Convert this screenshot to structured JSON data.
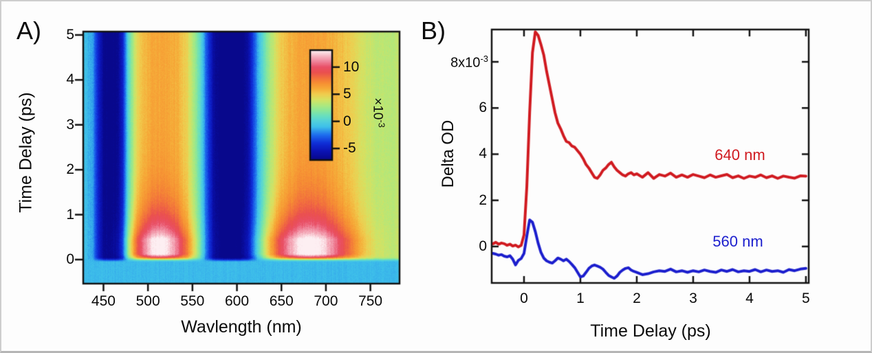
{
  "figure": {
    "panel_a_label": "A)",
    "panel_b_label": "B)"
  },
  "chart_data": [
    {
      "type": "heatmap",
      "panel": "A",
      "xlabel": "Wavlength (nm)",
      "ylabel": "Time Delay (ps)",
      "x_range": [
        428,
        782
      ],
      "y_range": [
        -0.52,
        5.06
      ],
      "x_ticks": [
        450,
        500,
        550,
        600,
        650,
        700,
        750
      ],
      "y_ticks": [
        0,
        1,
        2,
        3,
        4,
        5
      ],
      "value_units": "Delta OD x10^-3",
      "colorbar": {
        "range": [
          -7,
          13
        ],
        "ticks": [
          10,
          5,
          0,
          -5
        ],
        "multiplier_base": "×10",
        "multiplier_exp": "-3"
      },
      "colormap": [
        [
          -7,
          "#08088c"
        ],
        [
          -5.5,
          "#0b13b4"
        ],
        [
          -4,
          "#0f2fd8"
        ],
        [
          -2.5,
          "#1e6eee"
        ],
        [
          -1,
          "#3ec0ea"
        ],
        [
          0,
          "#52d0dc"
        ],
        [
          1,
          "#68dfbe"
        ],
        [
          2,
          "#8ae79a"
        ],
        [
          3,
          "#b0e87c"
        ],
        [
          4,
          "#d6e262"
        ],
        [
          5,
          "#f0cc4e"
        ],
        [
          6,
          "#f6ab38"
        ],
        [
          7,
          "#f69033"
        ],
        [
          8,
          "#f2703d"
        ],
        [
          9,
          "#ea4f4f"
        ],
        [
          10,
          "#e94f66"
        ],
        [
          11,
          "#ef8298"
        ],
        [
          12,
          "#f6b6c2"
        ],
        [
          13,
          "#fdeff2"
        ]
      ],
      "pre_zero_value": -1.1,
      "zero_blend_halfwidth": 0.06,
      "base_spectrum": [
        [
          428,
          -0.8
        ],
        [
          438,
          -1.6
        ],
        [
          444,
          -4.5
        ],
        [
          450,
          -6.9
        ],
        [
          458,
          -7.3
        ],
        [
          466,
          -6.9
        ],
        [
          472,
          -4.5
        ],
        [
          478,
          0.5
        ],
        [
          486,
          4.0
        ],
        [
          494,
          5.5
        ],
        [
          505,
          6.1
        ],
        [
          520,
          6.2
        ],
        [
          534,
          5.8
        ],
        [
          544,
          4.6
        ],
        [
          552,
          2.8
        ],
        [
          559,
          0.5
        ],
        [
          566,
          -3.0
        ],
        [
          574,
          -6.3
        ],
        [
          582,
          -7.4
        ],
        [
          592,
          -7.8
        ],
        [
          604,
          -7.6
        ],
        [
          612,
          -6.2
        ],
        [
          618,
          -3.8
        ],
        [
          624,
          -1.2
        ],
        [
          631,
          1.2
        ],
        [
          639,
          3.2
        ],
        [
          648,
          4.8
        ],
        [
          658,
          5.7
        ],
        [
          670,
          6.2
        ],
        [
          682,
          6.4
        ],
        [
          696,
          6.2
        ],
        [
          710,
          5.8
        ],
        [
          722,
          5.2
        ],
        [
          732,
          4.6
        ],
        [
          742,
          3.9
        ],
        [
          752,
          3.5
        ],
        [
          764,
          3.3
        ],
        [
          774,
          3.3
        ],
        [
          782,
          3.5
        ]
      ],
      "transient_features": [
        {
          "center": 513,
          "sigma": 23,
          "amplitude": 7.2
        },
        {
          "center": 682,
          "sigma": 34,
          "amplitude": 7.2
        }
      ],
      "kinetics": {
        "rise_start": -0.02,
        "rise_end": 0.12,
        "decay_start": 0.45,
        "decay_tau": 0.6
      },
      "noise": {
        "seed": 11,
        "pixel": 0.3,
        "column": 0.22,
        "pre_zero_factor": 0.5
      }
    },
    {
      "type": "line",
      "panel": "B",
      "xlabel": "Time Delay (ps)",
      "ylabel": "Delta OD",
      "x_range": [
        -0.573,
        5.05
      ],
      "y_range": [
        -1.58,
        9.4
      ],
      "x_ticks": [
        0,
        1,
        2,
        3,
        4,
        5
      ],
      "y_ticks": [
        8,
        6,
        4,
        2,
        0
      ],
      "y_multiplier": {
        "base": "8x10",
        "exp": "-3",
        "applies_to_tick": 8
      },
      "value_units": "x10^-3",
      "series": [
        {
          "name": "640 nm",
          "color": "#d01a20",
          "points": [
            [
              -0.55,
              0.12
            ],
            [
              -0.5,
              0.18
            ],
            [
              -0.45,
              0.1
            ],
            [
              -0.4,
              0.15
            ],
            [
              -0.35,
              0.12
            ],
            [
              -0.3,
              0.05
            ],
            [
              -0.25,
              0.1
            ],
            [
              -0.2,
              0.02
            ],
            [
              -0.15,
              0.06
            ],
            [
              -0.1,
              -0.02
            ],
            [
              -0.05,
              0.05
            ],
            [
              0,
              0.5
            ],
            [
              0.05,
              2.6
            ],
            [
              0.1,
              5.8
            ],
            [
              0.15,
              8.4
            ],
            [
              0.2,
              9.3
            ],
            [
              0.25,
              9.15
            ],
            [
              0.3,
              8.75
            ],
            [
              0.35,
              8.3
            ],
            [
              0.4,
              7.6
            ],
            [
              0.45,
              7.0
            ],
            [
              0.5,
              6.4
            ],
            [
              0.55,
              5.8
            ],
            [
              0.6,
              5.35
            ],
            [
              0.65,
              5.1
            ],
            [
              0.7,
              4.8
            ],
            [
              0.75,
              4.55
            ],
            [
              0.8,
              4.5
            ],
            [
              0.85,
              4.35
            ],
            [
              0.9,
              4.3
            ],
            [
              0.95,
              4.15
            ],
            [
              1,
              4.0
            ],
            [
              1.05,
              3.8
            ],
            [
              1.1,
              3.55
            ],
            [
              1.15,
              3.4
            ],
            [
              1.2,
              3.2
            ],
            [
              1.25,
              3.0
            ],
            [
              1.3,
              2.95
            ],
            [
              1.35,
              3.1
            ],
            [
              1.4,
              3.3
            ],
            [
              1.45,
              3.4
            ],
            [
              1.5,
              3.55
            ],
            [
              1.55,
              3.65
            ],
            [
              1.6,
              3.45
            ],
            [
              1.65,
              3.3
            ],
            [
              1.7,
              3.2
            ],
            [
              1.75,
              3.1
            ],
            [
              1.8,
              3.05
            ],
            [
              1.85,
              3.15
            ],
            [
              1.9,
              3.2
            ],
            [
              1.95,
              3.1
            ],
            [
              2,
              3.15
            ],
            [
              2.1,
              3.0
            ],
            [
              2.2,
              3.2
            ],
            [
              2.3,
              2.95
            ],
            [
              2.4,
              3.12
            ],
            [
              2.5,
              3.05
            ],
            [
              2.6,
              3.18
            ],
            [
              2.7,
              3.0
            ],
            [
              2.8,
              3.1
            ],
            [
              2.9,
              3.0
            ],
            [
              3,
              3.12
            ],
            [
              3.1,
              3.05
            ],
            [
              3.2,
              2.98
            ],
            [
              3.3,
              3.1
            ],
            [
              3.4,
              3.0
            ],
            [
              3.5,
              3.06
            ],
            [
              3.6,
              3.12
            ],
            [
              3.7,
              2.98
            ],
            [
              3.8,
              3.06
            ],
            [
              3.9,
              2.95
            ],
            [
              4,
              3.05
            ],
            [
              4.1,
              3.0
            ],
            [
              4.2,
              3.1
            ],
            [
              4.3,
              2.98
            ],
            [
              4.4,
              3.06
            ],
            [
              4.5,
              2.95
            ],
            [
              4.6,
              3.05
            ],
            [
              4.7,
              3.0
            ],
            [
              4.8,
              2.96
            ],
            [
              4.9,
              3.06
            ],
            [
              5,
              3.05
            ]
          ]
        },
        {
          "name": "560 nm",
          "color": "#1b1ecd",
          "points": [
            [
              -0.55,
              -0.3
            ],
            [
              -0.5,
              -0.33
            ],
            [
              -0.45,
              -0.38
            ],
            [
              -0.4,
              -0.35
            ],
            [
              -0.35,
              -0.42
            ],
            [
              -0.3,
              -0.45
            ],
            [
              -0.25,
              -0.4
            ],
            [
              -0.2,
              -0.55
            ],
            [
              -0.15,
              -0.8
            ],
            [
              -0.1,
              -0.6
            ],
            [
              -0.05,
              -0.52
            ],
            [
              0,
              -0.3
            ],
            [
              0.05,
              0.45
            ],
            [
              0.1,
              1.15
            ],
            [
              0.15,
              1.05
            ],
            [
              0.2,
              0.65
            ],
            [
              0.25,
              0.15
            ],
            [
              0.3,
              -0.25
            ],
            [
              0.35,
              -0.5
            ],
            [
              0.4,
              -0.62
            ],
            [
              0.45,
              -0.68
            ],
            [
              0.5,
              -0.72
            ],
            [
              0.55,
              -0.62
            ],
            [
              0.6,
              -0.5
            ],
            [
              0.65,
              -0.55
            ],
            [
              0.7,
              -0.62
            ],
            [
              0.75,
              -0.55
            ],
            [
              0.8,
              -0.65
            ],
            [
              0.85,
              -0.78
            ],
            [
              0.9,
              -0.92
            ],
            [
              0.95,
              -1.12
            ],
            [
              1,
              -1.32
            ],
            [
              1.05,
              -1.28
            ],
            [
              1.1,
              -1.12
            ],
            [
              1.15,
              -0.95
            ],
            [
              1.2,
              -0.85
            ],
            [
              1.25,
              -0.8
            ],
            [
              1.3,
              -0.85
            ],
            [
              1.35,
              -0.9
            ],
            [
              1.4,
              -0.98
            ],
            [
              1.45,
              -1.12
            ],
            [
              1.5,
              -1.25
            ],
            [
              1.55,
              -1.32
            ],
            [
              1.6,
              -1.38
            ],
            [
              1.65,
              -1.28
            ],
            [
              1.7,
              -1.12
            ],
            [
              1.75,
              -1.02
            ],
            [
              1.8,
              -0.95
            ],
            [
              1.85,
              -0.92
            ],
            [
              1.9,
              -1.02
            ],
            [
              1.95,
              -1.08
            ],
            [
              2,
              -1.12
            ],
            [
              2.1,
              -1.22
            ],
            [
              2.2,
              -1.18
            ],
            [
              2.3,
              -1.1
            ],
            [
              2.4,
              -1.05
            ],
            [
              2.5,
              -1.08
            ],
            [
              2.6,
              -0.98
            ],
            [
              2.7,
              -1.1
            ],
            [
              2.8,
              -1.05
            ],
            [
              2.9,
              -1.12
            ],
            [
              3,
              -1.05
            ],
            [
              3.1,
              -1.1
            ],
            [
              3.2,
              -1.02
            ],
            [
              3.3,
              -1.08
            ],
            [
              3.4,
              -1.12
            ],
            [
              3.5,
              -1.02
            ],
            [
              3.6,
              -1.08
            ],
            [
              3.7,
              -1.0
            ],
            [
              3.8,
              -1.1
            ],
            [
              3.9,
              -1.05
            ],
            [
              4,
              -1.08
            ],
            [
              4.1,
              -1.0
            ],
            [
              4.2,
              -1.1
            ],
            [
              4.3,
              -1.02
            ],
            [
              4.4,
              -1.08
            ],
            [
              4.5,
              -1.05
            ],
            [
              4.6,
              -1.12
            ],
            [
              4.7,
              -1.0
            ],
            [
              4.8,
              -1.05
            ],
            [
              4.9,
              -0.98
            ],
            [
              5,
              -0.95
            ]
          ]
        }
      ]
    }
  ]
}
